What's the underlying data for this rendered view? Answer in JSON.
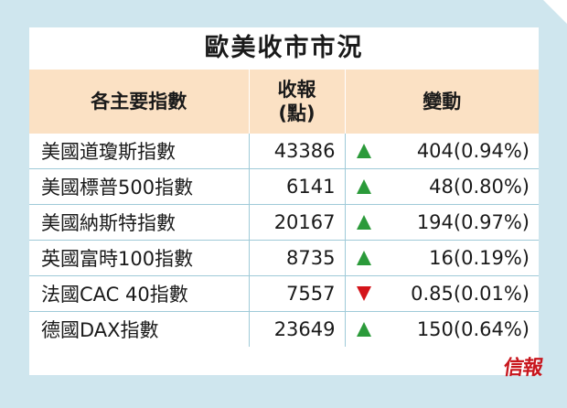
{
  "title": "歐美收市市況",
  "headers": {
    "name": "各主要指數",
    "close_line1": "收報",
    "close_line2": "(點)",
    "change": "變動"
  },
  "rows": [
    {
      "name": "美國道瓊斯指數",
      "close": "43386",
      "direction": "up",
      "change": "404(0.94%)"
    },
    {
      "name": "美國標普500指數",
      "close": "6141",
      "direction": "up",
      "change": "48(0.80%)"
    },
    {
      "name": "美國納斯特指數",
      "close": "20167",
      "direction": "up",
      "change": "194(0.97%)"
    },
    {
      "name": "英國富時100指數",
      "close": "8735",
      "direction": "up",
      "change": "16(0.19%)"
    },
    {
      "name": "法國CAC 40指數",
      "close": "7557",
      "direction": "down",
      "change": "0.85(0.01%)"
    },
    {
      "name": "德國DAX指數",
      "close": "23649",
      "direction": "up",
      "change": "150(0.64%)"
    }
  ],
  "logo": "信報",
  "colors": {
    "background": "#cfe6ee",
    "header_fill": "#fbe1c4",
    "up": "#2b9a3a",
    "down": "#d4141a",
    "logo": "#c8161d"
  }
}
